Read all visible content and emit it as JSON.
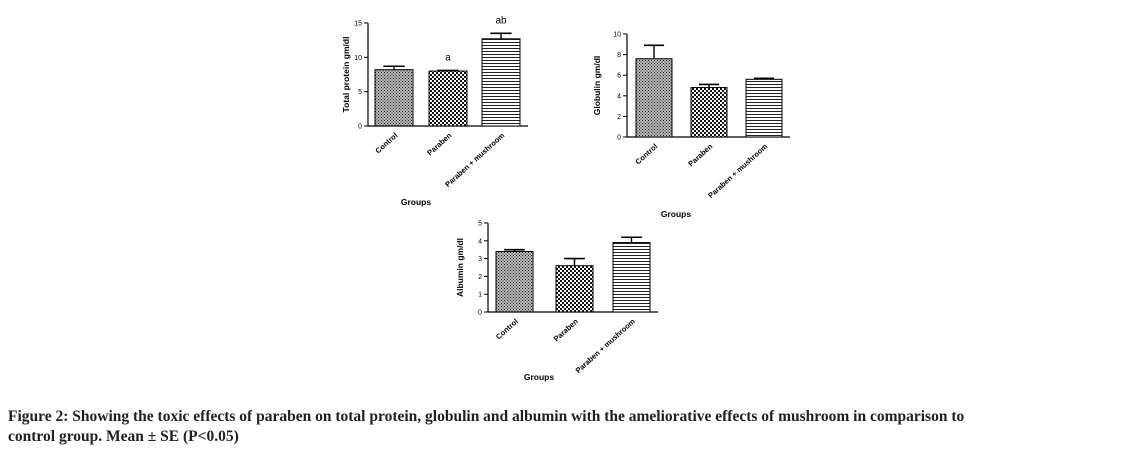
{
  "chart_data": [
    {
      "type": "bar",
      "categories": [
        "Control",
        "Paraben",
        "Paraben + mushroom"
      ],
      "values": [
        8.2,
        8.0,
        12.7
      ],
      "errors": [
        0.5,
        0.1,
        0.8
      ],
      "annotations": [
        "",
        "a",
        "ab"
      ],
      "xlabel": "Groups",
      "ylabel": "Total protein gm/dl",
      "ylim": [
        0,
        15
      ],
      "yticks": [
        "0",
        "5",
        "10",
        "15"
      ],
      "patterns": [
        "dense-dots",
        "checker",
        "horizontal-lines"
      ]
    },
    {
      "type": "bar",
      "categories": [
        "Control",
        "Paraben",
        "Paraben + mushroom"
      ],
      "values": [
        7.6,
        4.8,
        5.6
      ],
      "errors": [
        1.3,
        0.3,
        0.1
      ],
      "annotations": [
        "",
        "",
        ""
      ],
      "xlabel": "Groups",
      "ylabel": "Globulin gm/dl",
      "ylim": [
        0,
        10
      ],
      "yticks": [
        "0",
        "2",
        "4",
        "6",
        "8",
        "10"
      ],
      "patterns": [
        "dense-dots",
        "checker",
        "horizontal-lines"
      ]
    },
    {
      "type": "bar",
      "categories": [
        "Control",
        "Paraben",
        "Paraben + mushroom"
      ],
      "values": [
        3.4,
        2.6,
        3.9
      ],
      "errors": [
        0.1,
        0.4,
        0.3
      ],
      "annotations": [
        "",
        "",
        ""
      ],
      "xlabel": "Groups",
      "ylabel": "Albumin gm/dl",
      "ylim": [
        0,
        5
      ],
      "yticks": [
        "0",
        "1",
        "2",
        "3",
        "4",
        "5"
      ],
      "patterns": [
        "dense-dots",
        "checker",
        "horizontal-lines"
      ]
    }
  ],
  "caption": {
    "line1": "Figure 2: Showing the toxic effects of paraben on total protein, globulin and albumin with the ameliorative effects of mushroom in comparison to",
    "line2": "control group. Mean ± SE (P<0.05)"
  }
}
